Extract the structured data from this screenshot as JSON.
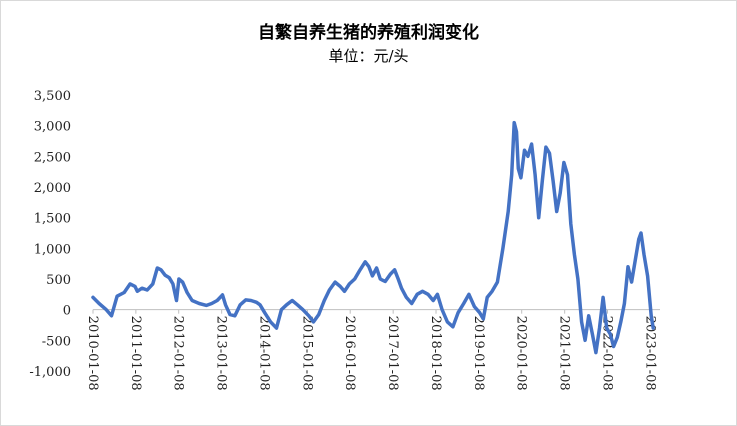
{
  "chart_data": {
    "type": "line",
    "title": "自繁自养生猪的养殖利润变化",
    "subtitle": "单位：元/头",
    "ylim": [
      -1000,
      3500
    ],
    "yticks": [
      "3,500",
      "3,000",
      "2,500",
      "2,000",
      "1,500",
      "1,000",
      "500",
      "0",
      "-500",
      "-1,000"
    ],
    "ytick_values": [
      3500,
      3000,
      2500,
      2000,
      1500,
      1000,
      500,
      0,
      -500,
      -1000
    ],
    "xlim": [
      "2010-01-08",
      "2023-03-31"
    ],
    "xticks": [
      "2010-01-08",
      "2011-01-08",
      "2012-01-08",
      "2013-01-08",
      "2014-01-08",
      "2015-01-08",
      "2016-01-08",
      "2017-01-08",
      "2018-01-08",
      "2019-01-08",
      "2020-01-08",
      "2021-01-08",
      "2022-01-08",
      "2023-01-08"
    ],
    "grid": false,
    "legend": "none",
    "series": [
      {
        "color": "#4472C4",
        "points": [
          [
            "2010-01-08",
            200
          ],
          [
            "2010-03-01",
            100
          ],
          [
            "2010-05-01",
            0
          ],
          [
            "2010-06-15",
            -100
          ],
          [
            "2010-08-01",
            220
          ],
          [
            "2010-10-01",
            280
          ],
          [
            "2010-11-20",
            420
          ],
          [
            "2011-01-01",
            380
          ],
          [
            "2011-01-20",
            300
          ],
          [
            "2011-03-01",
            350
          ],
          [
            "2011-04-15",
            320
          ],
          [
            "2011-06-01",
            420
          ],
          [
            "2011-07-10",
            680
          ],
          [
            "2011-08-10",
            650
          ],
          [
            "2011-09-15",
            560
          ],
          [
            "2011-10-20",
            520
          ],
          [
            "2011-11-20",
            420
          ],
          [
            "2011-12-20",
            150
          ],
          [
            "2012-01-10",
            500
          ],
          [
            "2012-02-10",
            450
          ],
          [
            "2012-03-20",
            280
          ],
          [
            "2012-05-01",
            150
          ],
          [
            "2012-07-01",
            100
          ],
          [
            "2012-09-01",
            70
          ],
          [
            "2012-10-15",
            100
          ],
          [
            "2012-12-01",
            150
          ],
          [
            "2013-01-15",
            240
          ],
          [
            "2013-02-10",
            80
          ],
          [
            "2013-03-20",
            -80
          ],
          [
            "2013-05-01",
            -100
          ],
          [
            "2013-06-15",
            80
          ],
          [
            "2013-08-01",
            160
          ],
          [
            "2013-09-15",
            150
          ],
          [
            "2013-11-01",
            120
          ],
          [
            "2013-12-01",
            80
          ],
          [
            "2014-01-10",
            -50
          ],
          [
            "2014-03-01",
            -200
          ],
          [
            "2014-04-20",
            -300
          ],
          [
            "2014-06-01",
            0
          ],
          [
            "2014-07-15",
            80
          ],
          [
            "2014-09-01",
            150
          ],
          [
            "2014-10-15",
            80
          ],
          [
            "2014-12-01",
            0
          ],
          [
            "2015-01-20",
            -100
          ],
          [
            "2015-03-01",
            -200
          ],
          [
            "2015-04-15",
            -80
          ],
          [
            "2015-06-01",
            150
          ],
          [
            "2015-07-15",
            320
          ],
          [
            "2015-09-01",
            450
          ],
          [
            "2015-10-15",
            380
          ],
          [
            "2015-11-20",
            300
          ],
          [
            "2016-01-01",
            420
          ],
          [
            "2016-02-15",
            500
          ],
          [
            "2016-04-01",
            650
          ],
          [
            "2016-05-15",
            780
          ],
          [
            "2016-06-15",
            700
          ],
          [
            "2016-07-15",
            550
          ],
          [
            "2016-08-20",
            680
          ],
          [
            "2016-09-20",
            500
          ],
          [
            "2016-11-01",
            460
          ],
          [
            "2016-12-15",
            580
          ],
          [
            "2017-01-20",
            650
          ],
          [
            "2017-02-20",
            500
          ],
          [
            "2017-03-20",
            350
          ],
          [
            "2017-05-01",
            200
          ],
          [
            "2017-06-15",
            100
          ],
          [
            "2017-08-01",
            250
          ],
          [
            "2017-09-15",
            300
          ],
          [
            "2017-11-01",
            250
          ],
          [
            "2017-12-15",
            150
          ],
          [
            "2018-01-20",
            250
          ],
          [
            "2018-03-01",
            0
          ],
          [
            "2018-04-15",
            -200
          ],
          [
            "2018-06-01",
            -280
          ],
          [
            "2018-07-15",
            -50
          ],
          [
            "2018-09-01",
            100
          ],
          [
            "2018-10-15",
            250
          ],
          [
            "2018-12-01",
            50
          ],
          [
            "2019-01-15",
            -50
          ],
          [
            "2019-02-15",
            -150
          ],
          [
            "2019-03-20",
            200
          ],
          [
            "2019-05-01",
            300
          ],
          [
            "2019-06-15",
            450
          ],
          [
            "2019-08-01",
            1000
          ],
          [
            "2019-09-15",
            1600
          ],
          [
            "2019-10-15",
            2200
          ],
          [
            "2019-11-05",
            3050
          ],
          [
            "2019-11-25",
            2900
          ],
          [
            "2019-12-10",
            2300
          ],
          [
            "2020-01-01",
            2150
          ],
          [
            "2020-02-01",
            2600
          ],
          [
            "2020-03-01",
            2500
          ],
          [
            "2020-04-01",
            2700
          ],
          [
            "2020-05-01",
            2200
          ],
          [
            "2020-06-01",
            1500
          ],
          [
            "2020-07-01",
            2100
          ],
          [
            "2020-08-01",
            2650
          ],
          [
            "2020-09-01",
            2550
          ],
          [
            "2020-10-01",
            2100
          ],
          [
            "2020-11-01",
            1600
          ],
          [
            "2020-12-01",
            1900
          ],
          [
            "2021-01-01",
            2400
          ],
          [
            "2021-02-01",
            2200
          ],
          [
            "2021-03-01",
            1400
          ],
          [
            "2021-04-01",
            900
          ],
          [
            "2021-05-01",
            500
          ],
          [
            "2021-06-01",
            -200
          ],
          [
            "2021-07-01",
            -500
          ],
          [
            "2021-08-01",
            -100
          ],
          [
            "2021-09-01",
            -400
          ],
          [
            "2021-10-01",
            -700
          ],
          [
            "2021-11-01",
            -300
          ],
          [
            "2021-12-01",
            200
          ],
          [
            "2022-01-01",
            -300
          ],
          [
            "2022-02-01",
            -400
          ],
          [
            "2022-03-01",
            -600
          ],
          [
            "2022-04-01",
            -450
          ],
          [
            "2022-05-01",
            -200
          ],
          [
            "2022-06-01",
            100
          ],
          [
            "2022-07-01",
            700
          ],
          [
            "2022-08-01",
            450
          ],
          [
            "2022-09-01",
            800
          ],
          [
            "2022-10-01",
            1150
          ],
          [
            "2022-10-20",
            1250
          ],
          [
            "2022-11-15",
            900
          ],
          [
            "2022-12-15",
            550
          ],
          [
            "2023-01-15",
            -100
          ],
          [
            "2023-02-01",
            -300
          ]
        ]
      }
    ]
  }
}
